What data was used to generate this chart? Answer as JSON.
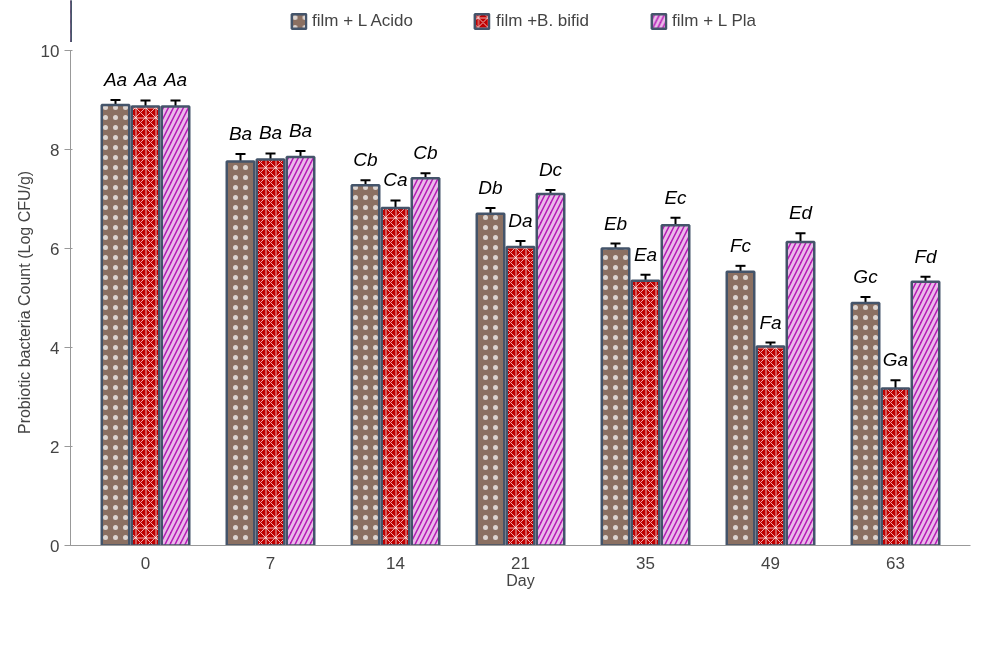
{
  "chart_data": {
    "type": "bar",
    "xlabel": "Day",
    "ylabel": "Probiotic bacteria Count   (Log CFU/g)",
    "categories": [
      "0",
      "7",
      "14",
      "21",
      "35",
      "49",
      "63"
    ],
    "ylim": [
      0,
      10
    ],
    "yticks": [
      0,
      2,
      4,
      6,
      8,
      10
    ],
    "grid": false,
    "legend": "top",
    "series": [
      {
        "name": "film + L Acido",
        "color": "#8b7062",
        "values": [
          8.9,
          7.76,
          7.28,
          6.7,
          6.0,
          5.53,
          4.9
        ],
        "errors": [
          0.1,
          0.15,
          0.1,
          0.12,
          0.1,
          0.12,
          0.12
        ],
        "value_labels": [
          "Aa",
          "Ba",
          "Cb",
          "Db",
          "Eb",
          "Fc",
          "Gc"
        ]
      },
      {
        "name": "film +B. bifid",
        "color": "#c00000",
        "values": [
          8.87,
          7.8,
          6.82,
          6.03,
          5.35,
          4.02,
          3.17
        ],
        "errors": [
          0.12,
          0.12,
          0.15,
          0.12,
          0.12,
          0.08,
          0.17
        ],
        "value_labels": [
          "Aa",
          "Ba",
          "Ca",
          "Da",
          "Ea",
          "Fa",
          "Ga"
        ]
      },
      {
        "name": "film + L Pla",
        "color": "#b517b5",
        "values": [
          8.87,
          7.85,
          7.42,
          7.1,
          6.47,
          6.13,
          5.33
        ],
        "errors": [
          0.12,
          0.12,
          0.1,
          0.08,
          0.15,
          0.18,
          0.1
        ],
        "value_labels": [
          "Aa",
          "Ba",
          "Cb",
          "Dc",
          "Ec",
          "Ed",
          "Fd"
        ]
      }
    ]
  }
}
